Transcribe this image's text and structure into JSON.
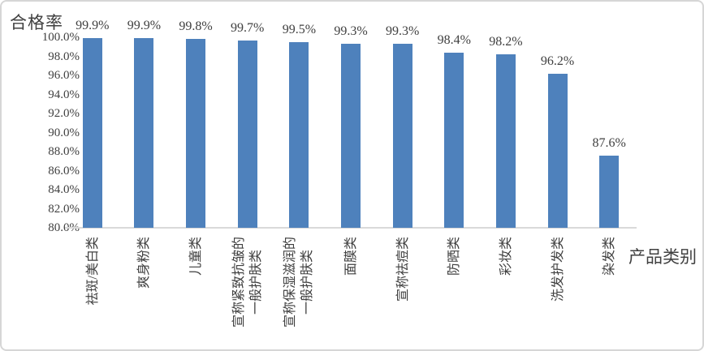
{
  "chart_data": {
    "type": "bar",
    "title": "",
    "ylabel": "合格率",
    "xlabel": "产品类别",
    "categories": [
      "祛斑/美白类",
      "爽身粉类",
      "儿童类",
      "宣称紧致抗皱的\n一般护肤类",
      "宣称保湿滋润的\n一般护肤类",
      "面膜类",
      "宣称祛痘类",
      "防晒类",
      "彩妆类",
      "洗发护发类",
      "染发类"
    ],
    "values": [
      99.9,
      99.9,
      99.8,
      99.7,
      99.5,
      99.3,
      99.3,
      98.4,
      98.2,
      96.2,
      87.6
    ],
    "data_labels": [
      "99.9%",
      "99.9%",
      "99.8%",
      "99.7%",
      "99.5%",
      "99.3%",
      "99.3%",
      "98.4%",
      "98.2%",
      "96.2%",
      "87.6%"
    ],
    "ylim": [
      80,
      100
    ],
    "ytick_step": 2,
    "ytick_labels": [
      "100.0%",
      "98.0%",
      "96.0%",
      "94.0%",
      "92.0%",
      "90.0%",
      "88.0%",
      "86.0%",
      "84.0%",
      "82.0%",
      "80.0%"
    ],
    "bar_color": "#4E81BC",
    "text_color": "#404040",
    "axis_line_color": "#D9D9D9",
    "grid": false,
    "legend_position": "none"
  }
}
